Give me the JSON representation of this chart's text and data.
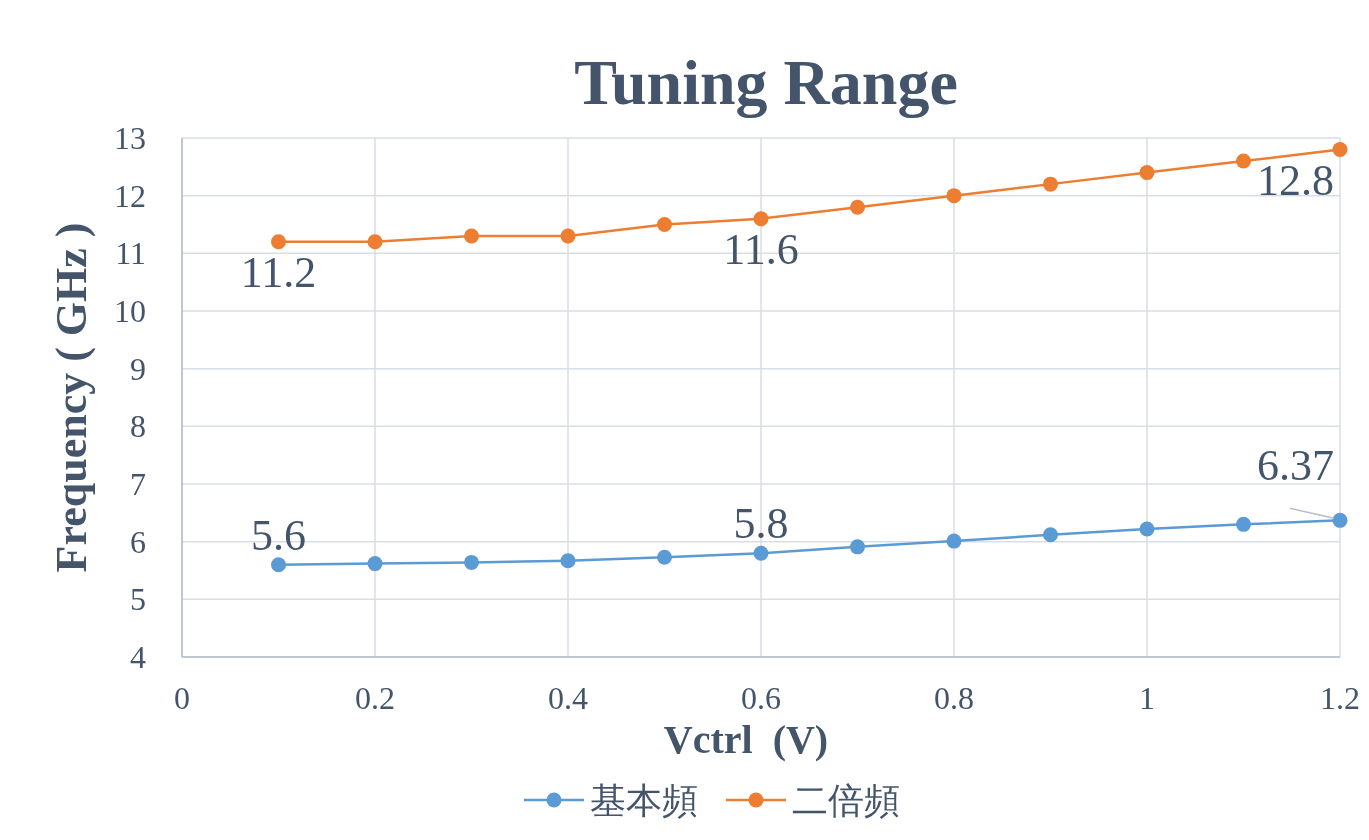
{
  "chart_data": {
    "type": "line",
    "title": "Tuning Range",
    "xlabel": "Vctrl  (V)",
    "ylabel": "Frequency ( GHz )",
    "x": [
      0.1,
      0.2,
      0.3,
      0.4,
      0.5,
      0.6,
      0.7,
      0.8,
      0.9,
      1.0,
      1.1,
      1.2
    ],
    "series": [
      {
        "name": "基本頻",
        "color": "#5b9bd5",
        "values": [
          5.6,
          5.62,
          5.64,
          5.67,
          5.73,
          5.8,
          5.91,
          6.01,
          6.12,
          6.22,
          6.3,
          6.37
        ],
        "value_labels": [
          "5.6",
          null,
          null,
          null,
          null,
          "5.8",
          null,
          null,
          null,
          null,
          null,
          "6.37"
        ]
      },
      {
        "name": "二倍頻",
        "color": "#ed7d31",
        "values": [
          11.2,
          11.2,
          11.3,
          11.3,
          11.5,
          11.6,
          11.8,
          12.0,
          12.2,
          12.4,
          12.6,
          12.8
        ],
        "value_labels": [
          "11.2",
          null,
          null,
          null,
          null,
          "11.6",
          null,
          null,
          null,
          null,
          null,
          "12.8"
        ]
      }
    ],
    "xlim": [
      0,
      1.2
    ],
    "xticks": [
      0,
      0.2,
      0.4,
      0.6,
      0.8,
      1,
      1.2
    ],
    "ylim": [
      4,
      13
    ],
    "yticks": [
      4,
      5,
      6,
      7,
      8,
      9,
      10,
      11,
      12,
      13
    ],
    "grid": true,
    "legend": "bottom",
    "marker": "circle",
    "line_style": "solid"
  }
}
